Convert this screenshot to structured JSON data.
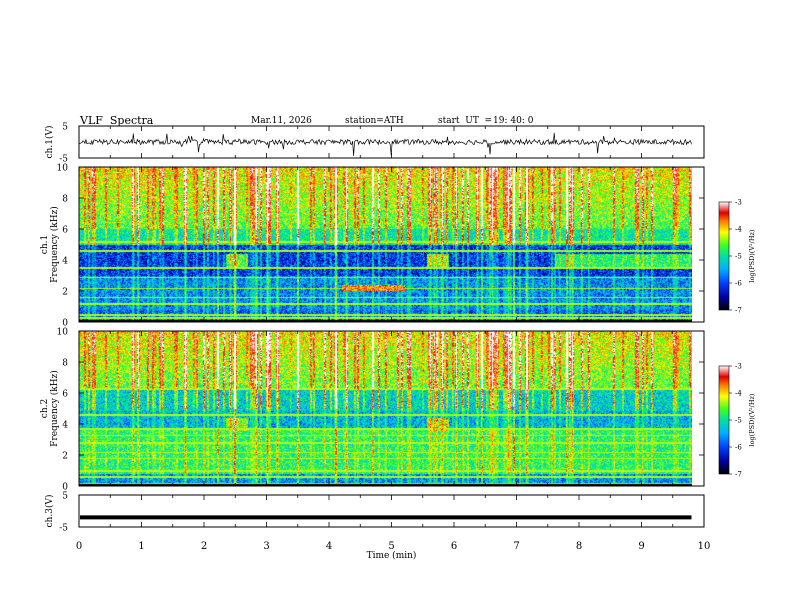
{
  "header": {
    "title": "VLF  Spectra",
    "date": "Mar.11, 2026",
    "station": "station=ATH",
    "start_label": "start  UT  =",
    "start_time": "19: 40: 0"
  },
  "chart_data": [
    {
      "type": "line",
      "panel": "ch1-waveform",
      "ylabel": "ch.1(V)",
      "ylim": [
        -5,
        5
      ],
      "yticks": [
        5,
        -5
      ],
      "x_range": [
        0,
        9.8
      ],
      "series": [
        {
          "values_description_level": "noise around approximately 0 V with spikes up to about +2 / -3 V",
          "line_color": "#000000"
        }
      ]
    },
    {
      "type": "heatmap",
      "panel": "ch1-spectrogram",
      "ylabel": "ch.1\nFrequency  (kHz)",
      "ylim": [
        0,
        10
      ],
      "yticks": [
        0,
        2,
        4,
        6,
        8,
        10
      ],
      "x_range": [
        0,
        9.8
      ],
      "notes": "persistent horizontal lines near 0.3, 1.2, 2.2, 3.5, 4.0 kHz; blue band 3-5 kHz; broadband sferics",
      "colorbar": {
        "label": "log(PSD)(V²/Hz)",
        "range": [
          -7,
          -3
        ],
        "ticks": [
          -3,
          -4,
          -5,
          -6,
          -7
        ]
      }
    },
    {
      "type": "heatmap",
      "panel": "ch2-spectrogram",
      "ylabel": "ch.2\nFrequency  (kHz)",
      "ylim": [
        0,
        10
      ],
      "yticks": [
        0,
        2,
        4,
        6,
        8,
        10
      ],
      "x_range": [
        0,
        9.8
      ],
      "colorbar": {
        "label": "log(PSD)(V²/Hz)",
        "range": [
          -7,
          -3
        ],
        "ticks": [
          -3,
          -4,
          -5,
          -6,
          -7
        ]
      }
    },
    {
      "type": "line",
      "panel": "ch3-waveform",
      "ylabel": "ch.3(V)",
      "ylim": [
        -5,
        5
      ],
      "yticks": [
        5,
        -5
      ],
      "x_range": [
        0,
        9.8
      ],
      "series": [
        {
          "constant_value": -2
        }
      ]
    }
  ],
  "xaxis": {
    "label": "Time  (min)",
    "ticks": [
      "0",
      "1",
      "2",
      "3",
      "4",
      "5",
      "6",
      "7",
      "8",
      "9",
      "10"
    ],
    "range": [
      0,
      10
    ]
  },
  "colors": {
    "cmap": [
      "#000000",
      "#0000a0",
      "#0030ff",
      "#00b8ff",
      "#00e0a0",
      "#30ff30",
      "#ffff00",
      "#ff8000",
      "#e00000",
      "#ffffff"
    ]
  }
}
